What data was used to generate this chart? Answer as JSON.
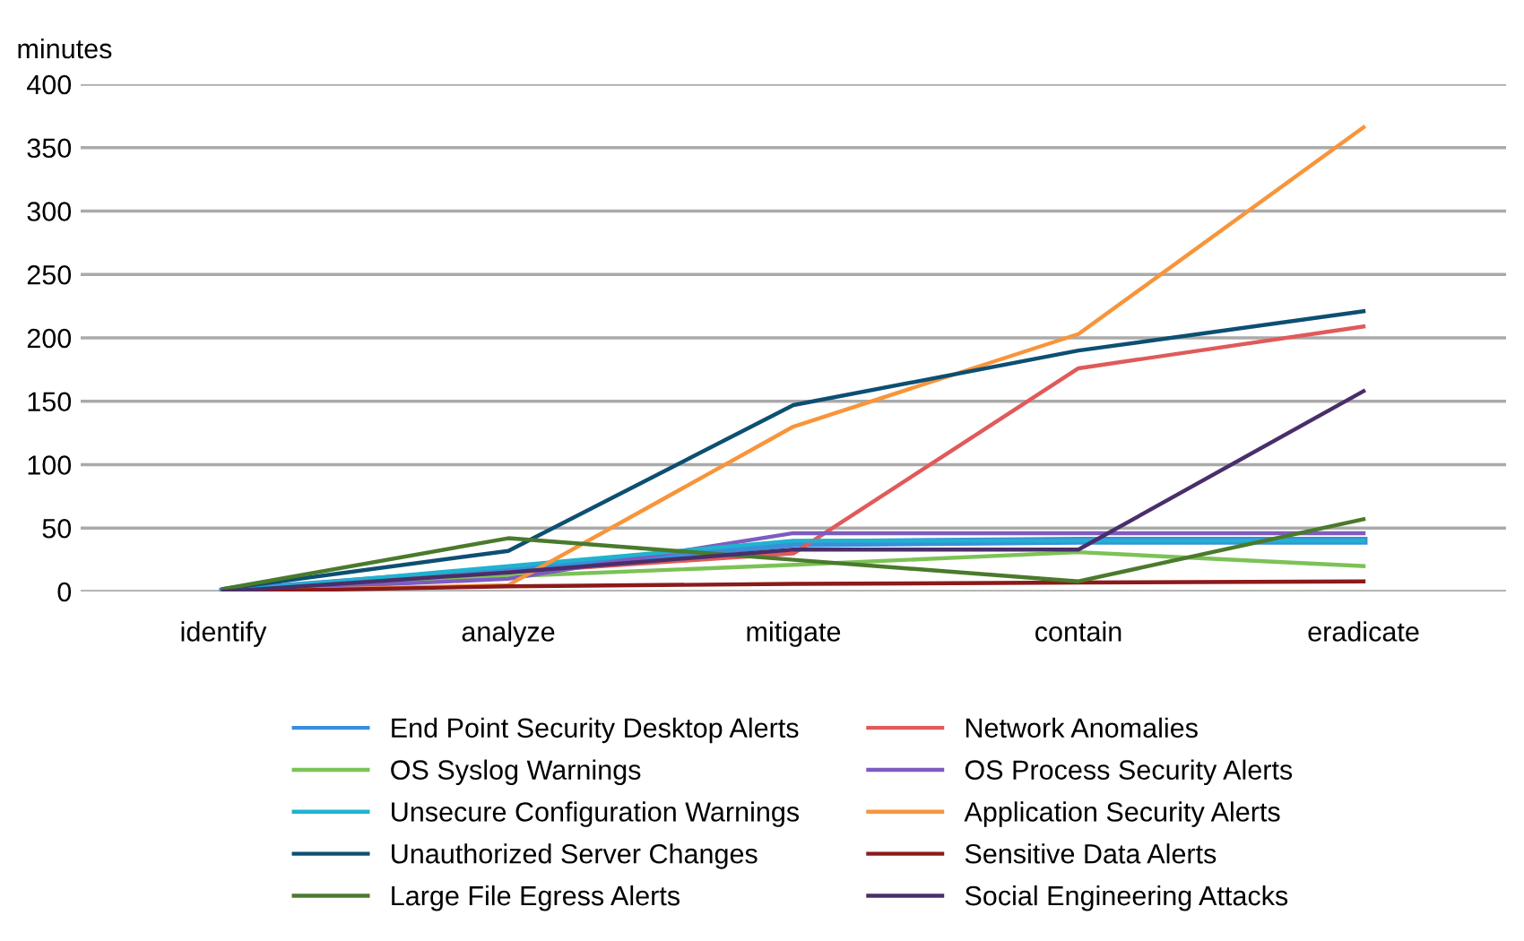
{
  "chart_data": {
    "type": "line",
    "ylabel": "minutes",
    "categories": [
      "identify",
      "analyze",
      "mitigate",
      "contain",
      "eradicate"
    ],
    "ylim": [
      0,
      400
    ],
    "yticks": [
      0,
      50,
      100,
      150,
      200,
      250,
      300,
      350,
      400
    ],
    "grid": "y",
    "legend": "bottom",
    "marker": "none",
    "line_style": "solid",
    "series": [
      {
        "name": "End Point Security Desktop Alerts",
        "color": "#3a8fd9",
        "values": [
          0,
          17,
          38,
          40,
          40
        ]
      },
      {
        "name": "Network Anomalies",
        "color": "#e05a5a",
        "values": [
          0,
          15,
          30,
          176,
          209
        ]
      },
      {
        "name": "OS Syslog Warnings",
        "color": "#7cc257",
        "values": [
          0,
          12,
          21,
          31,
          20
        ]
      },
      {
        "name": "OS Process Security Alerts",
        "color": "#7e5cbf",
        "values": [
          0,
          10,
          46,
          46,
          46
        ]
      },
      {
        "name": "Unsecure Configuration Warnings",
        "color": "#1fb3cf",
        "values": [
          0,
          20,
          40,
          40,
          40
        ]
      },
      {
        "name": "Application Security Alerts",
        "color": "#f7953b",
        "values": [
          0,
          5,
          130,
          203,
          366
        ]
      },
      {
        "name": "Unauthorized Server Changes",
        "color": "#0d4f72",
        "values": [
          2,
          32,
          147,
          190,
          221
        ]
      },
      {
        "name": "Sensitive Data Alerts",
        "color": "#8b1a1a",
        "values": [
          0,
          4,
          6,
          7,
          8
        ]
      },
      {
        "name": "Large File Egress Alerts",
        "color": "#4a7a2c",
        "values": [
          2,
          42,
          25,
          8,
          57
        ]
      },
      {
        "name": "Social Engineering Attacks",
        "color": "#4a2e6b",
        "values": [
          0,
          15,
          33,
          33,
          158
        ]
      }
    ]
  }
}
